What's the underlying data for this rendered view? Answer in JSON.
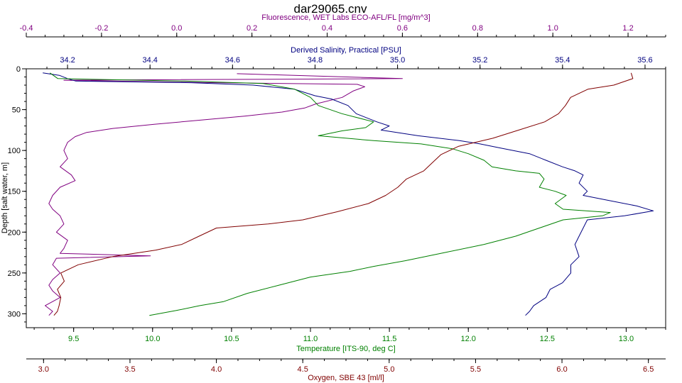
{
  "chart_data": {
    "type": "line",
    "title": "dar29065.cnv",
    "grid": false,
    "depth_axis": {
      "label": "Depth [salt water, m]",
      "range": [
        0,
        317
      ],
      "ticks": [
        "0",
        "50",
        "100",
        "150",
        "200",
        "250",
        "300"
      ],
      "tick_values": [
        0,
        50,
        100,
        150,
        200,
        250,
        300
      ],
      "inverted": true
    },
    "top_axes": [
      {
        "key": "fluorescence",
        "label": "Fluorescence, WET Labs ECO-AFL/FL [mg/m^3]",
        "color": "#800080",
        "range": [
          -0.4,
          1.3
        ],
        "ticks": [
          "-0.4",
          "-0.2",
          "0.0",
          "0.2",
          "0.4",
          "0.6",
          "0.8",
          "1.0",
          "1.2"
        ],
        "tick_values": [
          -0.4,
          -0.2,
          0.0,
          0.2,
          0.4,
          0.6,
          0.8,
          1.0,
          1.2
        ]
      },
      {
        "key": "salinity",
        "label": "Derived Salinity, Practical [PSU]",
        "color": "#000080",
        "range": [
          34.1,
          35.65
        ],
        "ticks": [
          "34.2",
          "34.4",
          "34.6",
          "34.8",
          "35.0",
          "35.2",
          "35.4",
          "35.6"
        ],
        "tick_values": [
          34.2,
          34.4,
          34.6,
          34.8,
          35.0,
          35.2,
          35.4,
          35.6
        ]
      }
    ],
    "bottom_axes": [
      {
        "key": "temperature",
        "label": "Temperature [ITS-90, deg C]",
        "color": "#008000",
        "range": [
          9.2,
          13.25
        ],
        "ticks": [
          "9.5",
          "10.0",
          "10.5",
          "11.0",
          "11.5",
          "12.0",
          "12.5",
          "13.0"
        ],
        "tick_values": [
          9.5,
          10.0,
          10.5,
          11.0,
          11.5,
          12.0,
          12.5,
          13.0
        ]
      },
      {
        "key": "oxygen",
        "label": "Oxygen, SBE 43 [ml/l]",
        "color": "#800000",
        "range": [
          2.9,
          6.6
        ],
        "ticks": [
          "3.0",
          "3.5",
          "4.0",
          "4.5",
          "5.0",
          "5.5",
          "6.0",
          "6.5"
        ],
        "tick_values": [
          3.0,
          3.5,
          4.0,
          4.5,
          5.0,
          5.5,
          6.0,
          6.5
        ]
      }
    ],
    "series": [
      {
        "key": "fluorescence",
        "color": "#800080",
        "points": [
          [
            0.16,
            6
          ],
          [
            0.6,
            12
          ],
          [
            -0.3,
            14
          ],
          [
            0.1,
            17
          ],
          [
            0.48,
            19
          ],
          [
            0.5,
            22
          ],
          [
            0.47,
            27
          ],
          [
            0.44,
            35
          ],
          [
            0.37,
            43
          ],
          [
            0.34,
            48
          ],
          [
            0.28,
            53
          ],
          [
            0.18,
            58
          ],
          [
            0.06,
            63
          ],
          [
            -0.06,
            68
          ],
          [
            -0.17,
            73
          ],
          [
            -0.24,
            78
          ],
          [
            -0.27,
            83
          ],
          [
            -0.29,
            90
          ],
          [
            -0.3,
            100
          ],
          [
            -0.29,
            110
          ],
          [
            -0.31,
            120
          ],
          [
            -0.28,
            130
          ],
          [
            -0.27,
            137
          ],
          [
            -0.31,
            145
          ],
          [
            -0.33,
            155
          ],
          [
            -0.34,
            165
          ],
          [
            -0.33,
            172
          ],
          [
            -0.31,
            180
          ],
          [
            -0.3,
            190
          ],
          [
            -0.32,
            200
          ],
          [
            -0.29,
            210
          ],
          [
            -0.3,
            220
          ],
          [
            -0.31,
            226
          ],
          [
            -0.07,
            229
          ],
          [
            -0.32,
            232
          ],
          [
            -0.33,
            240
          ],
          [
            -0.31,
            250
          ],
          [
            -0.33,
            258
          ],
          [
            -0.34,
            265
          ],
          [
            -0.33,
            272
          ],
          [
            -0.31,
            280
          ],
          [
            -0.35,
            290
          ],
          [
            -0.33,
            297
          ],
          [
            -0.34,
            302
          ]
        ]
      },
      {
        "key": "salinity",
        "color": "#000080",
        "points": [
          [
            34.14,
            5
          ],
          [
            34.18,
            8
          ],
          [
            34.2,
            12
          ],
          [
            34.22,
            15
          ],
          [
            34.5,
            17
          ],
          [
            34.65,
            20
          ],
          [
            34.75,
            25
          ],
          [
            34.8,
            33
          ],
          [
            34.84,
            37
          ],
          [
            34.88,
            45
          ],
          [
            34.9,
            55
          ],
          [
            34.95,
            65
          ],
          [
            34.98,
            70
          ],
          [
            34.96,
            75
          ],
          [
            35.05,
            82
          ],
          [
            35.15,
            88
          ],
          [
            35.2,
            92
          ],
          [
            35.25,
            97
          ],
          [
            35.32,
            104
          ],
          [
            35.36,
            112
          ],
          [
            35.4,
            120
          ],
          [
            35.43,
            125
          ],
          [
            35.45,
            130
          ],
          [
            35.44,
            140
          ],
          [
            35.46,
            150
          ],
          [
            35.45,
            155
          ],
          [
            35.5,
            160
          ],
          [
            35.58,
            168
          ],
          [
            35.62,
            174
          ],
          [
            35.55,
            180
          ],
          [
            35.46,
            185
          ],
          [
            35.45,
            195
          ],
          [
            35.44,
            205
          ],
          [
            35.43,
            215
          ],
          [
            35.44,
            230
          ],
          [
            35.42,
            240
          ],
          [
            35.42,
            250
          ],
          [
            35.4,
            262
          ],
          [
            35.37,
            270
          ],
          [
            35.36,
            280
          ],
          [
            35.33,
            290
          ],
          [
            35.32,
            297
          ],
          [
            35.31,
            302
          ]
        ]
      },
      {
        "key": "temperature",
        "color": "#008000",
        "points": [
          [
            9.35,
            5
          ],
          [
            9.4,
            12
          ],
          [
            10.2,
            15
          ],
          [
            10.7,
            18
          ],
          [
            10.9,
            25
          ],
          [
            11.0,
            35
          ],
          [
            11.05,
            45
          ],
          [
            11.2,
            55
          ],
          [
            11.4,
            65
          ],
          [
            11.35,
            72
          ],
          [
            11.2,
            76
          ],
          [
            11.05,
            82
          ],
          [
            11.4,
            88
          ],
          [
            11.7,
            92
          ],
          [
            11.9,
            98
          ],
          [
            12.0,
            104
          ],
          [
            12.1,
            112
          ],
          [
            12.15,
            120
          ],
          [
            12.3,
            125
          ],
          [
            12.45,
            128
          ],
          [
            12.48,
            135
          ],
          [
            12.45,
            145
          ],
          [
            12.55,
            150
          ],
          [
            12.62,
            155
          ],
          [
            12.55,
            165
          ],
          [
            12.6,
            172
          ],
          [
            12.9,
            176
          ],
          [
            12.85,
            180
          ],
          [
            12.6,
            185
          ],
          [
            12.45,
            195
          ],
          [
            12.3,
            205
          ],
          [
            12.1,
            215
          ],
          [
            11.85,
            225
          ],
          [
            11.6,
            235
          ],
          [
            11.4,
            242
          ],
          [
            11.25,
            248
          ],
          [
            11.0,
            255
          ],
          [
            10.8,
            265
          ],
          [
            10.6,
            275
          ],
          [
            10.45,
            285
          ],
          [
            10.3,
            290
          ],
          [
            10.15,
            296
          ],
          [
            9.98,
            302
          ]
        ]
      },
      {
        "key": "oxygen",
        "color": "#800000",
        "points": [
          [
            6.4,
            5
          ],
          [
            6.41,
            12
          ],
          [
            6.3,
            20
          ],
          [
            6.15,
            25
          ],
          [
            6.05,
            35
          ],
          [
            6.02,
            45
          ],
          [
            5.98,
            55
          ],
          [
            5.9,
            65
          ],
          [
            5.75,
            75
          ],
          [
            5.6,
            85
          ],
          [
            5.4,
            95
          ],
          [
            5.3,
            105
          ],
          [
            5.25,
            115
          ],
          [
            5.2,
            125
          ],
          [
            5.1,
            135
          ],
          [
            5.05,
            145
          ],
          [
            4.98,
            155
          ],
          [
            4.88,
            165
          ],
          [
            4.7,
            175
          ],
          [
            4.5,
            185
          ],
          [
            4.3,
            190
          ],
          [
            4.0,
            195
          ],
          [
            3.9,
            205
          ],
          [
            3.8,
            215
          ],
          [
            3.65,
            222
          ],
          [
            3.4,
            230
          ],
          [
            3.2,
            240
          ],
          [
            3.1,
            250
          ],
          [
            3.12,
            260
          ],
          [
            3.08,
            270
          ],
          [
            3.1,
            280
          ],
          [
            3.09,
            290
          ],
          [
            3.08,
            297
          ],
          [
            3.06,
            302
          ]
        ]
      }
    ]
  }
}
